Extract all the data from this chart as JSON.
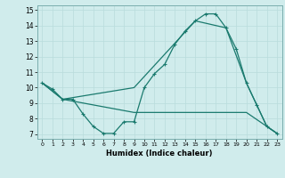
{
  "xlabel": "Humidex (Indice chaleur)",
  "x_ticks": [
    0,
    1,
    2,
    3,
    4,
    5,
    6,
    7,
    8,
    9,
    10,
    11,
    12,
    13,
    14,
    15,
    16,
    17,
    18,
    19,
    20,
    21,
    22,
    23
  ],
  "xlim": [
    -0.5,
    23.5
  ],
  "ylim": [
    6.7,
    15.3
  ],
  "y_ticks": [
    7,
    8,
    9,
    10,
    11,
    12,
    13,
    14,
    15
  ],
  "bg_color": "#d0ecec",
  "grid_color": "#b8dcdc",
  "line_color": "#1a7a6e",
  "line1_x": [
    0,
    1,
    2,
    3,
    4,
    5,
    6,
    7,
    8,
    9,
    10,
    11,
    12,
    13,
    14,
    15,
    16,
    17,
    18,
    19,
    20,
    21,
    22,
    23
  ],
  "line1_y": [
    10.3,
    9.9,
    9.25,
    9.25,
    8.3,
    7.5,
    7.05,
    7.05,
    7.8,
    7.8,
    10.0,
    10.9,
    11.5,
    12.8,
    13.65,
    14.3,
    14.75,
    14.75,
    13.85,
    12.5,
    10.3,
    8.9,
    7.5,
    7.05
  ],
  "line2_x": [
    0,
    2,
    9,
    15,
    18,
    20,
    22,
    23
  ],
  "line2_y": [
    10.3,
    9.25,
    10.0,
    14.3,
    13.85,
    10.3,
    7.5,
    7.05
  ],
  "line3_x": [
    0,
    2,
    9,
    15,
    18,
    20,
    22,
    23
  ],
  "line3_y": [
    10.3,
    9.25,
    8.4,
    8.4,
    8.4,
    8.4,
    7.5,
    7.05
  ]
}
